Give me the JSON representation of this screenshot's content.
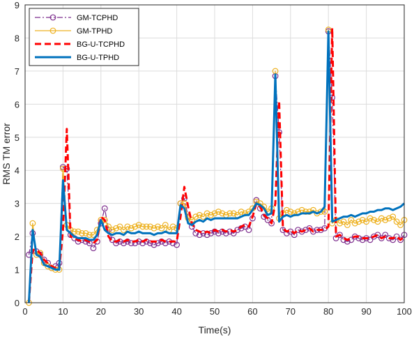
{
  "chart_data": {
    "type": "line",
    "xlabel": "Time(s)",
    "ylabel": "RMS TM error",
    "xlim": [
      0,
      100
    ],
    "ylim": [
      0,
      9
    ],
    "xticks": [
      0,
      10,
      20,
      30,
      40,
      50,
      60,
      70,
      80,
      90,
      100
    ],
    "yticks": [
      0,
      1,
      2,
      3,
      4,
      5,
      6,
      7,
      8,
      9
    ],
    "grid": true,
    "legend_position": "top-left",
    "series": [
      {
        "name": "GM-TCPHD",
        "color": "#7e2f8e",
        "style": "dash-dot-circle",
        "x": [
          1,
          2,
          3,
          4,
          5,
          6,
          7,
          8,
          9,
          10,
          11,
          12,
          13,
          14,
          15,
          16,
          17,
          18,
          19,
          20,
          21,
          22,
          23,
          24,
          25,
          26,
          27,
          28,
          29,
          30,
          31,
          32,
          33,
          34,
          35,
          36,
          37,
          38,
          39,
          40,
          41,
          42,
          43,
          44,
          45,
          46,
          47,
          48,
          49,
          50,
          51,
          52,
          53,
          54,
          55,
          56,
          57,
          58,
          59,
          60,
          61,
          62,
          63,
          64,
          65,
          66,
          67,
          68,
          69,
          70,
          71,
          72,
          73,
          74,
          75,
          76,
          77,
          78,
          79,
          80,
          81,
          82,
          83,
          84,
          85,
          86,
          87,
          88,
          89,
          90,
          91,
          92,
          93,
          94,
          95,
          96,
          97,
          98,
          99,
          100
        ],
        "values": [
          1.45,
          2.1,
          1.55,
          1.45,
          1.3,
          1.2,
          1.05,
          1.1,
          1.2,
          4.1,
          4.05,
          2.05,
          1.95,
          1.85,
          1.9,
          1.85,
          1.8,
          1.65,
          1.85,
          2.4,
          2.85,
          2.2,
          1.9,
          1.8,
          1.85,
          1.8,
          1.85,
          1.8,
          1.8,
          1.85,
          1.8,
          1.85,
          1.8,
          1.75,
          1.8,
          1.85,
          1.8,
          1.85,
          1.8,
          1.75,
          3.0,
          3.15,
          2.6,
          2.3,
          2.1,
          2.05,
          2.1,
          2.05,
          2.1,
          2.15,
          2.1,
          2.15,
          2.1,
          2.15,
          2.1,
          2.2,
          2.25,
          2.3,
          2.2,
          2.55,
          3.1,
          2.85,
          2.6,
          2.5,
          2.4,
          6.85,
          5.15,
          2.2,
          2.1,
          2.15,
          2.05,
          2.2,
          2.15,
          2.2,
          2.25,
          2.15,
          2.2,
          2.2,
          2.25,
          8.2,
          6.2,
          1.95,
          2.05,
          1.9,
          1.85,
          1.9,
          2.0,
          1.95,
          1.9,
          1.95,
          1.9,
          2.0,
          2.05,
          1.95,
          2.05,
          1.95,
          1.9,
          2.0,
          1.9,
          2.05
        ]
      },
      {
        "name": "GM-TPHD",
        "color": "#edb120",
        "style": "solid-circle",
        "x": [
          1,
          2,
          3,
          4,
          5,
          6,
          7,
          8,
          9,
          10,
          11,
          12,
          13,
          14,
          15,
          16,
          17,
          18,
          19,
          20,
          21,
          22,
          23,
          24,
          25,
          26,
          27,
          28,
          29,
          30,
          31,
          32,
          33,
          34,
          35,
          36,
          37,
          38,
          39,
          40,
          41,
          42,
          43,
          44,
          45,
          46,
          47,
          48,
          49,
          50,
          51,
          52,
          53,
          54,
          55,
          56,
          57,
          58,
          59,
          60,
          61,
          62,
          63,
          64,
          65,
          66,
          67,
          68,
          69,
          70,
          71,
          72,
          73,
          74,
          75,
          76,
          77,
          78,
          79,
          80,
          81,
          82,
          83,
          84,
          85,
          86,
          87,
          88,
          89,
          90,
          91,
          92,
          93,
          94,
          95,
          96,
          97,
          98,
          99,
          100
        ],
        "values": [
          0.0,
          2.4,
          1.45,
          1.5,
          1.2,
          1.1,
          1.05,
          1.0,
          1.0,
          4.05,
          2.35,
          2.2,
          2.15,
          2.15,
          2.1,
          2.1,
          2.05,
          2.05,
          2.2,
          2.5,
          2.5,
          2.3,
          2.2,
          2.25,
          2.3,
          2.2,
          2.3,
          2.25,
          2.3,
          2.35,
          2.3,
          2.3,
          2.3,
          2.25,
          2.3,
          2.25,
          2.35,
          2.2,
          2.3,
          2.25,
          3.0,
          3.0,
          2.55,
          2.5,
          2.6,
          2.65,
          2.6,
          2.7,
          2.65,
          2.7,
          2.75,
          2.7,
          2.65,
          2.7,
          2.7,
          2.65,
          2.75,
          2.7,
          2.75,
          2.85,
          3.05,
          3.0,
          2.9,
          2.75,
          2.85,
          7.0,
          2.55,
          2.7,
          2.8,
          2.75,
          2.7,
          2.75,
          2.8,
          2.75,
          2.75,
          2.8,
          2.7,
          2.75,
          2.75,
          8.25,
          2.4,
          2.5,
          2.4,
          2.45,
          2.35,
          2.5,
          2.4,
          2.45,
          2.5,
          2.45,
          2.55,
          2.5,
          2.45,
          2.55,
          2.5,
          2.55,
          2.6,
          2.45,
          2.35,
          2.5
        ]
      },
      {
        "name": "BG-U-TCPHD",
        "color": "#ff0000",
        "style": "dashed-thick",
        "x": [
          1,
          2,
          3,
          4,
          5,
          6,
          7,
          8,
          9,
          10,
          11,
          12,
          13,
          14,
          15,
          16,
          17,
          18,
          19,
          20,
          21,
          22,
          23,
          24,
          25,
          26,
          27,
          28,
          29,
          30,
          31,
          32,
          33,
          34,
          35,
          36,
          37,
          38,
          39,
          40,
          41,
          42,
          43,
          44,
          45,
          46,
          47,
          48,
          49,
          50,
          51,
          52,
          53,
          54,
          55,
          56,
          57,
          58,
          59,
          60,
          61,
          62,
          63,
          64,
          65,
          66,
          67,
          68,
          69,
          70,
          71,
          72,
          73,
          74,
          75,
          76,
          77,
          78,
          79,
          80,
          81,
          82,
          83,
          84,
          85,
          86,
          87,
          88,
          89,
          90,
          91,
          92,
          93,
          94,
          95,
          96,
          97,
          98,
          99,
          100
        ],
        "values": [
          0.0,
          1.6,
          1.6,
          1.5,
          1.3,
          1.2,
          1.1,
          1.05,
          1.0,
          2.2,
          5.25,
          2.0,
          1.95,
          1.9,
          1.85,
          1.9,
          1.85,
          1.8,
          1.9,
          2.6,
          2.5,
          2.0,
          1.85,
          1.85,
          1.9,
          1.85,
          1.9,
          1.85,
          1.85,
          1.9,
          1.85,
          1.9,
          1.85,
          1.85,
          1.85,
          1.9,
          1.85,
          1.85,
          1.85,
          1.85,
          2.6,
          3.5,
          2.9,
          2.4,
          2.2,
          2.15,
          2.1,
          2.15,
          2.1,
          2.2,
          2.15,
          2.2,
          2.15,
          2.2,
          2.15,
          2.2,
          2.3,
          2.35,
          2.3,
          2.6,
          3.0,
          2.9,
          2.65,
          2.55,
          2.4,
          3.0,
          6.1,
          2.25,
          2.15,
          2.2,
          2.1,
          2.2,
          2.15,
          2.2,
          2.25,
          2.15,
          2.2,
          2.2,
          2.2,
          2.3,
          8.3,
          2.0,
          2.05,
          1.95,
          1.9,
          1.95,
          2.0,
          2.0,
          1.95,
          1.95,
          1.95,
          2.0,
          2.05,
          1.95,
          2.0,
          1.95,
          1.95,
          2.0,
          1.9,
          2.0
        ]
      },
      {
        "name": "BG-U-TPHD",
        "color": "#0072bd",
        "style": "solid-thick",
        "x": [
          1,
          2,
          3,
          4,
          5,
          6,
          7,
          8,
          9,
          10,
          11,
          12,
          13,
          14,
          15,
          16,
          17,
          18,
          19,
          20,
          21,
          22,
          23,
          24,
          25,
          26,
          27,
          28,
          29,
          30,
          31,
          32,
          33,
          34,
          35,
          36,
          37,
          38,
          39,
          40,
          41,
          42,
          43,
          44,
          45,
          46,
          47,
          48,
          49,
          50,
          51,
          52,
          53,
          54,
          55,
          56,
          57,
          58,
          59,
          60,
          61,
          62,
          63,
          64,
          65,
          66,
          67,
          68,
          69,
          70,
          71,
          72,
          73,
          74,
          75,
          76,
          77,
          78,
          79,
          80,
          81,
          82,
          83,
          84,
          85,
          86,
          87,
          88,
          89,
          90,
          91,
          92,
          93,
          94,
          95,
          96,
          97,
          98,
          99,
          100
        ],
        "values": [
          0.0,
          2.2,
          1.45,
          1.4,
          1.15,
          1.1,
          1.05,
          1.0,
          1.0,
          3.7,
          2.2,
          2.1,
          2.0,
          1.95,
          1.95,
          1.95,
          1.9,
          1.9,
          2.05,
          2.5,
          2.2,
          2.1,
          2.05,
          2.1,
          2.1,
          2.05,
          2.15,
          2.1,
          2.1,
          2.15,
          2.1,
          2.1,
          2.1,
          2.05,
          2.1,
          2.1,
          2.15,
          2.1,
          2.1,
          2.1,
          2.95,
          2.85,
          2.4,
          2.35,
          2.45,
          2.5,
          2.45,
          2.55,
          2.5,
          2.55,
          2.55,
          2.55,
          2.55,
          2.55,
          2.55,
          2.55,
          2.6,
          2.65,
          2.65,
          2.8,
          3.0,
          2.95,
          2.85,
          2.65,
          2.7,
          6.9,
          2.45,
          2.6,
          2.65,
          2.6,
          2.65,
          2.65,
          2.7,
          2.7,
          2.7,
          2.75,
          2.7,
          2.75,
          2.9,
          8.2,
          2.45,
          2.5,
          2.55,
          2.6,
          2.6,
          2.65,
          2.6,
          2.65,
          2.7,
          2.7,
          2.75,
          2.75,
          2.8,
          2.8,
          2.85,
          2.85,
          2.8,
          2.85,
          2.9,
          3.0
        ]
      }
    ]
  }
}
